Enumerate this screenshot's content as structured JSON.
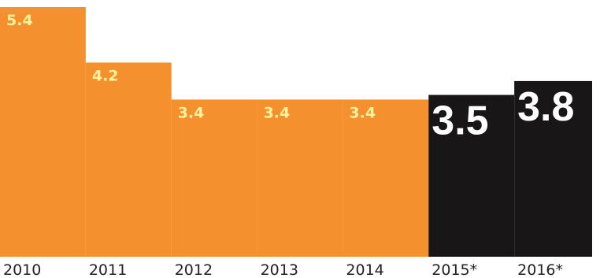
{
  "chart_data": {
    "type": "bar",
    "categories": [
      "2010",
      "2011",
      "2012",
      "2013",
      "2014",
      "2015*",
      "2016*"
    ],
    "values": [
      5.4,
      4.2,
      3.4,
      3.4,
      3.4,
      3.5,
      3.8
    ],
    "value_labels": [
      "5.4",
      "4.2",
      "3.4",
      "3.4",
      "3.4",
      "3.5",
      "3.8"
    ],
    "forecast": [
      false,
      false,
      false,
      false,
      false,
      true,
      true
    ],
    "title": "",
    "xlabel": "",
    "ylabel": "",
    "ylim": [
      0,
      5.4
    ],
    "grid": false,
    "colors": {
      "actual": "#f5902e",
      "forecast": "#181616",
      "actual_label": "#fff3a0",
      "forecast_label": "#ffffff"
    }
  }
}
